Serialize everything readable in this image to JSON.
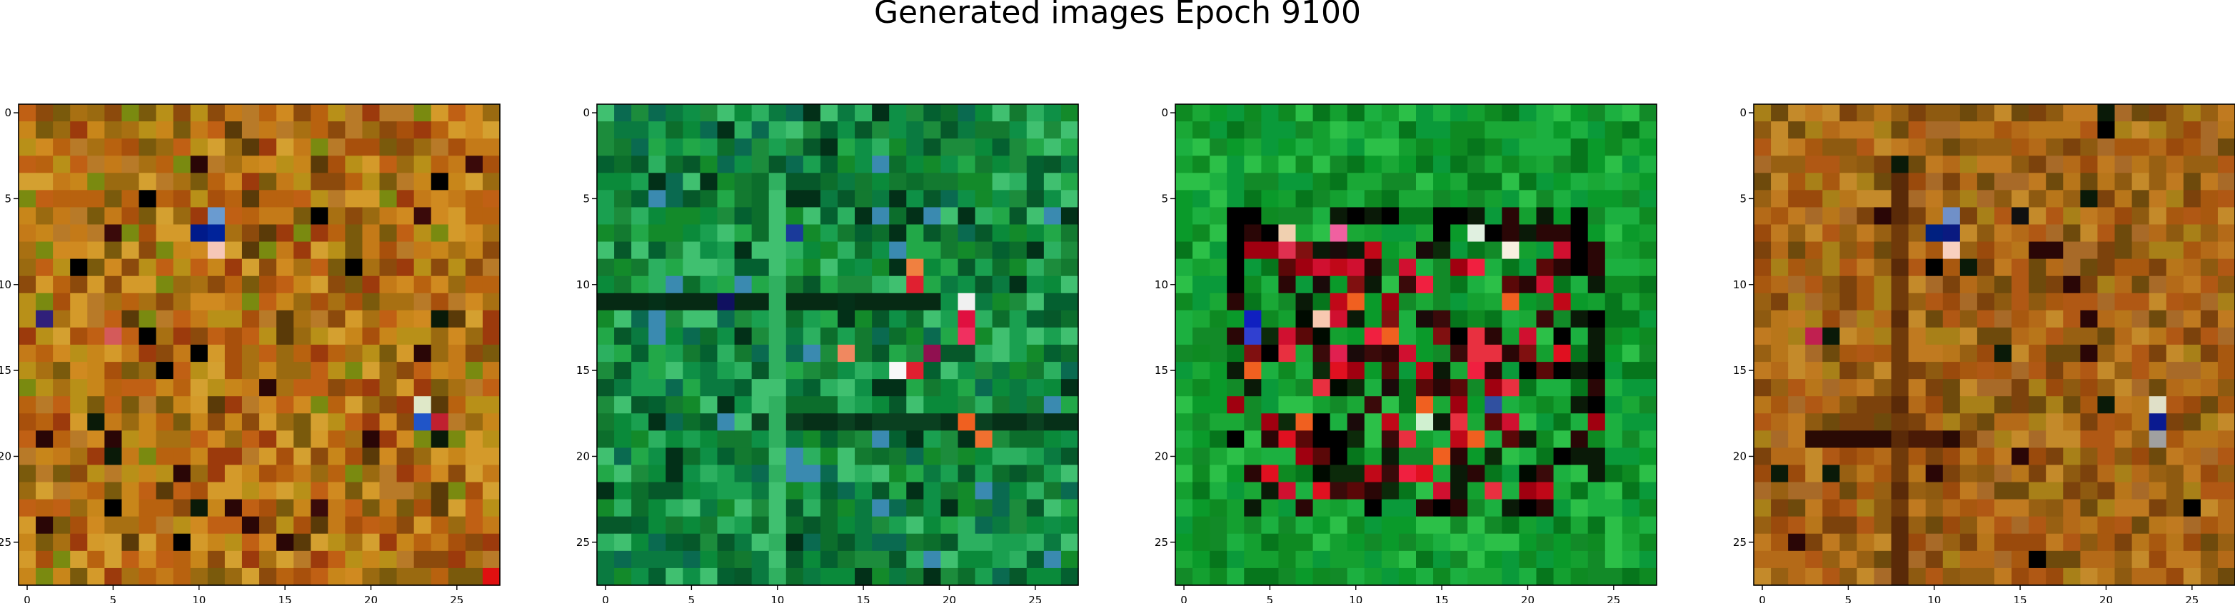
{
  "figure": {
    "title": "Generated images Epoch 9100"
  },
  "chart_data": [
    {
      "type": "heatmap",
      "palette": "warm",
      "rows": 28,
      "cols": 28,
      "xlim": [
        -0.5,
        27.5
      ],
      "ylim": [
        27.5,
        -0.5
      ],
      "xticks": [
        0,
        5,
        10,
        15,
        20,
        25
      ],
      "yticks": [
        0,
        5,
        10,
        15,
        20,
        25
      ],
      "tick_labels": [
        "0",
        "5",
        "10",
        "15",
        "20",
        "25"
      ],
      "accent_pixels": [
        {
          "row": 6,
          "col": 11,
          "color": "#6a9bd0"
        },
        {
          "row": 7,
          "col": 11,
          "color": "#00239a"
        },
        {
          "row": 8,
          "col": 11,
          "color": "#f6c7b8"
        },
        {
          "row": 7,
          "col": 10,
          "color": "#001a8a"
        },
        {
          "row": 17,
          "col": 23,
          "color": "#dfe8c8"
        },
        {
          "row": 18,
          "col": 23,
          "color": "#2055c8"
        },
        {
          "row": 18,
          "col": 24,
          "color": "#c02030"
        },
        {
          "row": 13,
          "col": 5,
          "color": "#d45a5a"
        },
        {
          "row": 12,
          "col": 1,
          "color": "#30207a"
        },
        {
          "row": 27,
          "col": 27,
          "color": "#e01010"
        }
      ]
    },
    {
      "type": "heatmap",
      "palette": "green",
      "rows": 28,
      "cols": 28,
      "xlim": [
        -0.5,
        27.5
      ],
      "ylim": [
        27.5,
        -0.5
      ],
      "xticks": [
        0,
        5,
        10,
        15,
        20,
        25
      ],
      "yticks": [
        0,
        5,
        10,
        15,
        20,
        25
      ],
      "tick_labels": [
        "0",
        "5",
        "10",
        "15",
        "20",
        "25"
      ],
      "accent_pixels": [
        {
          "row": 9,
          "col": 18,
          "color": "#f08040"
        },
        {
          "row": 10,
          "col": 18,
          "color": "#e02030"
        },
        {
          "row": 11,
          "col": 21,
          "color": "#f0f0f0"
        },
        {
          "row": 12,
          "col": 21,
          "color": "#e01040"
        },
        {
          "row": 13,
          "col": 21,
          "color": "#f03060"
        },
        {
          "row": 14,
          "col": 14,
          "color": "#f08860"
        },
        {
          "row": 15,
          "col": 17,
          "color": "#f8f8f8"
        },
        {
          "row": 15,
          "col": 18,
          "color": "#e02030"
        },
        {
          "row": 14,
          "col": 19,
          "color": "#901050"
        },
        {
          "row": 18,
          "col": 21,
          "color": "#f06020"
        },
        {
          "row": 19,
          "col": 22,
          "color": "#f07030"
        },
        {
          "row": 7,
          "col": 11,
          "color": "#1a3a9a"
        },
        {
          "row": 11,
          "col": 7,
          "color": "#101060"
        }
      ]
    },
    {
      "type": "heatmap",
      "palette": "green-ring",
      "rows": 28,
      "cols": 28,
      "xlim": [
        -0.5,
        27.5
      ],
      "ylim": [
        27.5,
        -0.5
      ],
      "xticks": [
        0,
        5,
        10,
        15,
        20,
        25
      ],
      "yticks": [
        0,
        5,
        10,
        15,
        20,
        25
      ],
      "tick_labels": [
        "0",
        "5",
        "10",
        "15",
        "20",
        "25"
      ],
      "accent_pixels": [
        {
          "row": 7,
          "col": 6,
          "color": "#f0d0b0"
        },
        {
          "row": 8,
          "col": 6,
          "color": "#e03050"
        },
        {
          "row": 7,
          "col": 9,
          "color": "#f060a0"
        },
        {
          "row": 12,
          "col": 4,
          "color": "#1020c0"
        },
        {
          "row": 13,
          "col": 4,
          "color": "#3040d0"
        },
        {
          "row": 12,
          "col": 8,
          "color": "#f8c8b0"
        },
        {
          "row": 14,
          "col": 9,
          "color": "#e02050"
        },
        {
          "row": 18,
          "col": 14,
          "color": "#d0f0d0"
        },
        {
          "row": 17,
          "col": 18,
          "color": "#3050a0"
        },
        {
          "row": 7,
          "col": 17,
          "color": "#e0f0e0"
        },
        {
          "row": 8,
          "col": 19,
          "color": "#f8f0e0"
        },
        {
          "row": 7,
          "col": 23,
          "color": "#000000"
        },
        {
          "row": 8,
          "col": 23,
          "color": "#000000"
        }
      ]
    },
    {
      "type": "heatmap",
      "palette": "warm-muted",
      "rows": 28,
      "cols": 28,
      "xlim": [
        -0.5,
        27.5
      ],
      "ylim": [
        27.5,
        -0.5
      ],
      "xticks": [
        0,
        5,
        10,
        15,
        20,
        25
      ],
      "yticks": [
        0,
        5,
        10,
        15,
        20,
        25
      ],
      "tick_labels": [
        "0",
        "5",
        "10",
        "15",
        "20",
        "25"
      ],
      "accent_pixels": [
        {
          "row": 6,
          "col": 11,
          "color": "#7090c8"
        },
        {
          "row": 7,
          "col": 11,
          "color": "#0a1a80"
        },
        {
          "row": 8,
          "col": 11,
          "color": "#f8d0c0"
        },
        {
          "row": 7,
          "col": 10,
          "color": "#002080"
        },
        {
          "row": 17,
          "col": 23,
          "color": "#e0e0c8"
        },
        {
          "row": 18,
          "col": 23,
          "color": "#0a1a90"
        },
        {
          "row": 19,
          "col": 23,
          "color": "#a0a0a0"
        },
        {
          "row": 13,
          "col": 3,
          "color": "#c02050"
        },
        {
          "row": 6,
          "col": 15,
          "color": "#101010"
        }
      ]
    }
  ]
}
